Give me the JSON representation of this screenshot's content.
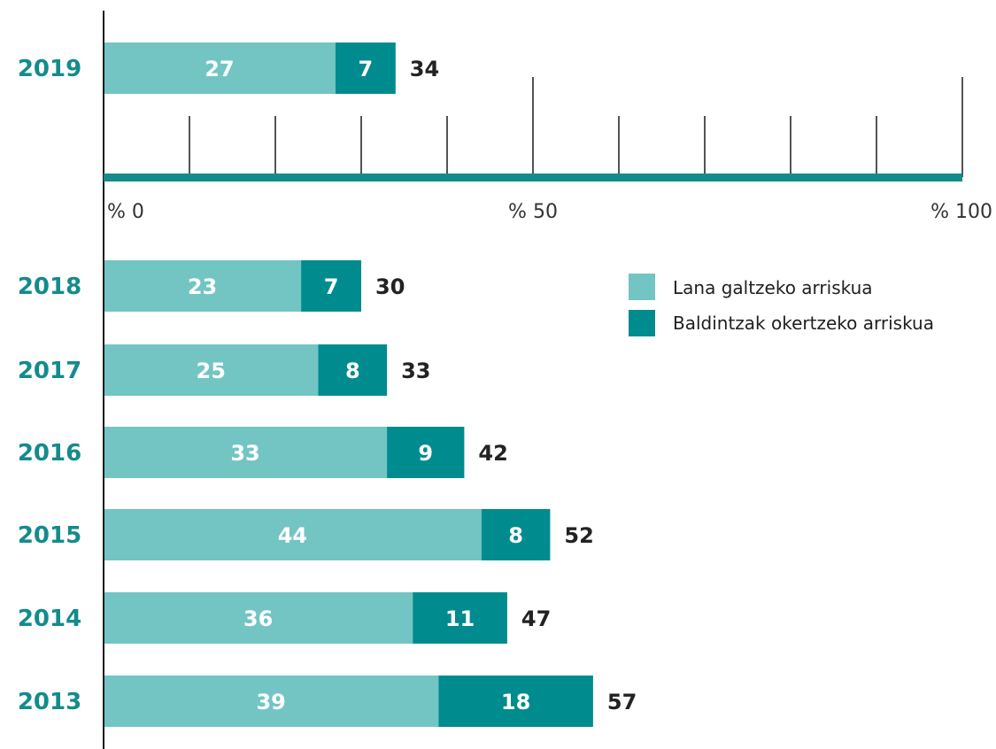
{
  "colors": {
    "series1": "#72c5c3",
    "series2": "#008b8e",
    "year": "#148b8c",
    "axis_bar": "#148b8c",
    "line": "#1a1a1a",
    "total_text": "#222222"
  },
  "chart_data": {
    "type": "bar",
    "orientation": "horizontal",
    "stacked": true,
    "categories": [
      "2019",
      "2018",
      "2017",
      "2016",
      "2015",
      "2014",
      "2013"
    ],
    "series": [
      {
        "name": "Lana galtzeko arriskua",
        "values": [
          27,
          23,
          25,
          33,
          44,
          36,
          39
        ]
      },
      {
        "name": "Baldintzak okertzeko arriskua",
        "values": [
          7,
          7,
          8,
          9,
          8,
          11,
          18
        ]
      }
    ],
    "totals": [
      34,
      30,
      33,
      42,
      52,
      47,
      57
    ],
    "xlim": [
      0,
      100
    ],
    "tick_labels": [
      "% 0",
      "% 50",
      "% 100"
    ],
    "tick_values": [
      0,
      50,
      100
    ],
    "minor_tick_step": 10,
    "legend_position": "right"
  }
}
